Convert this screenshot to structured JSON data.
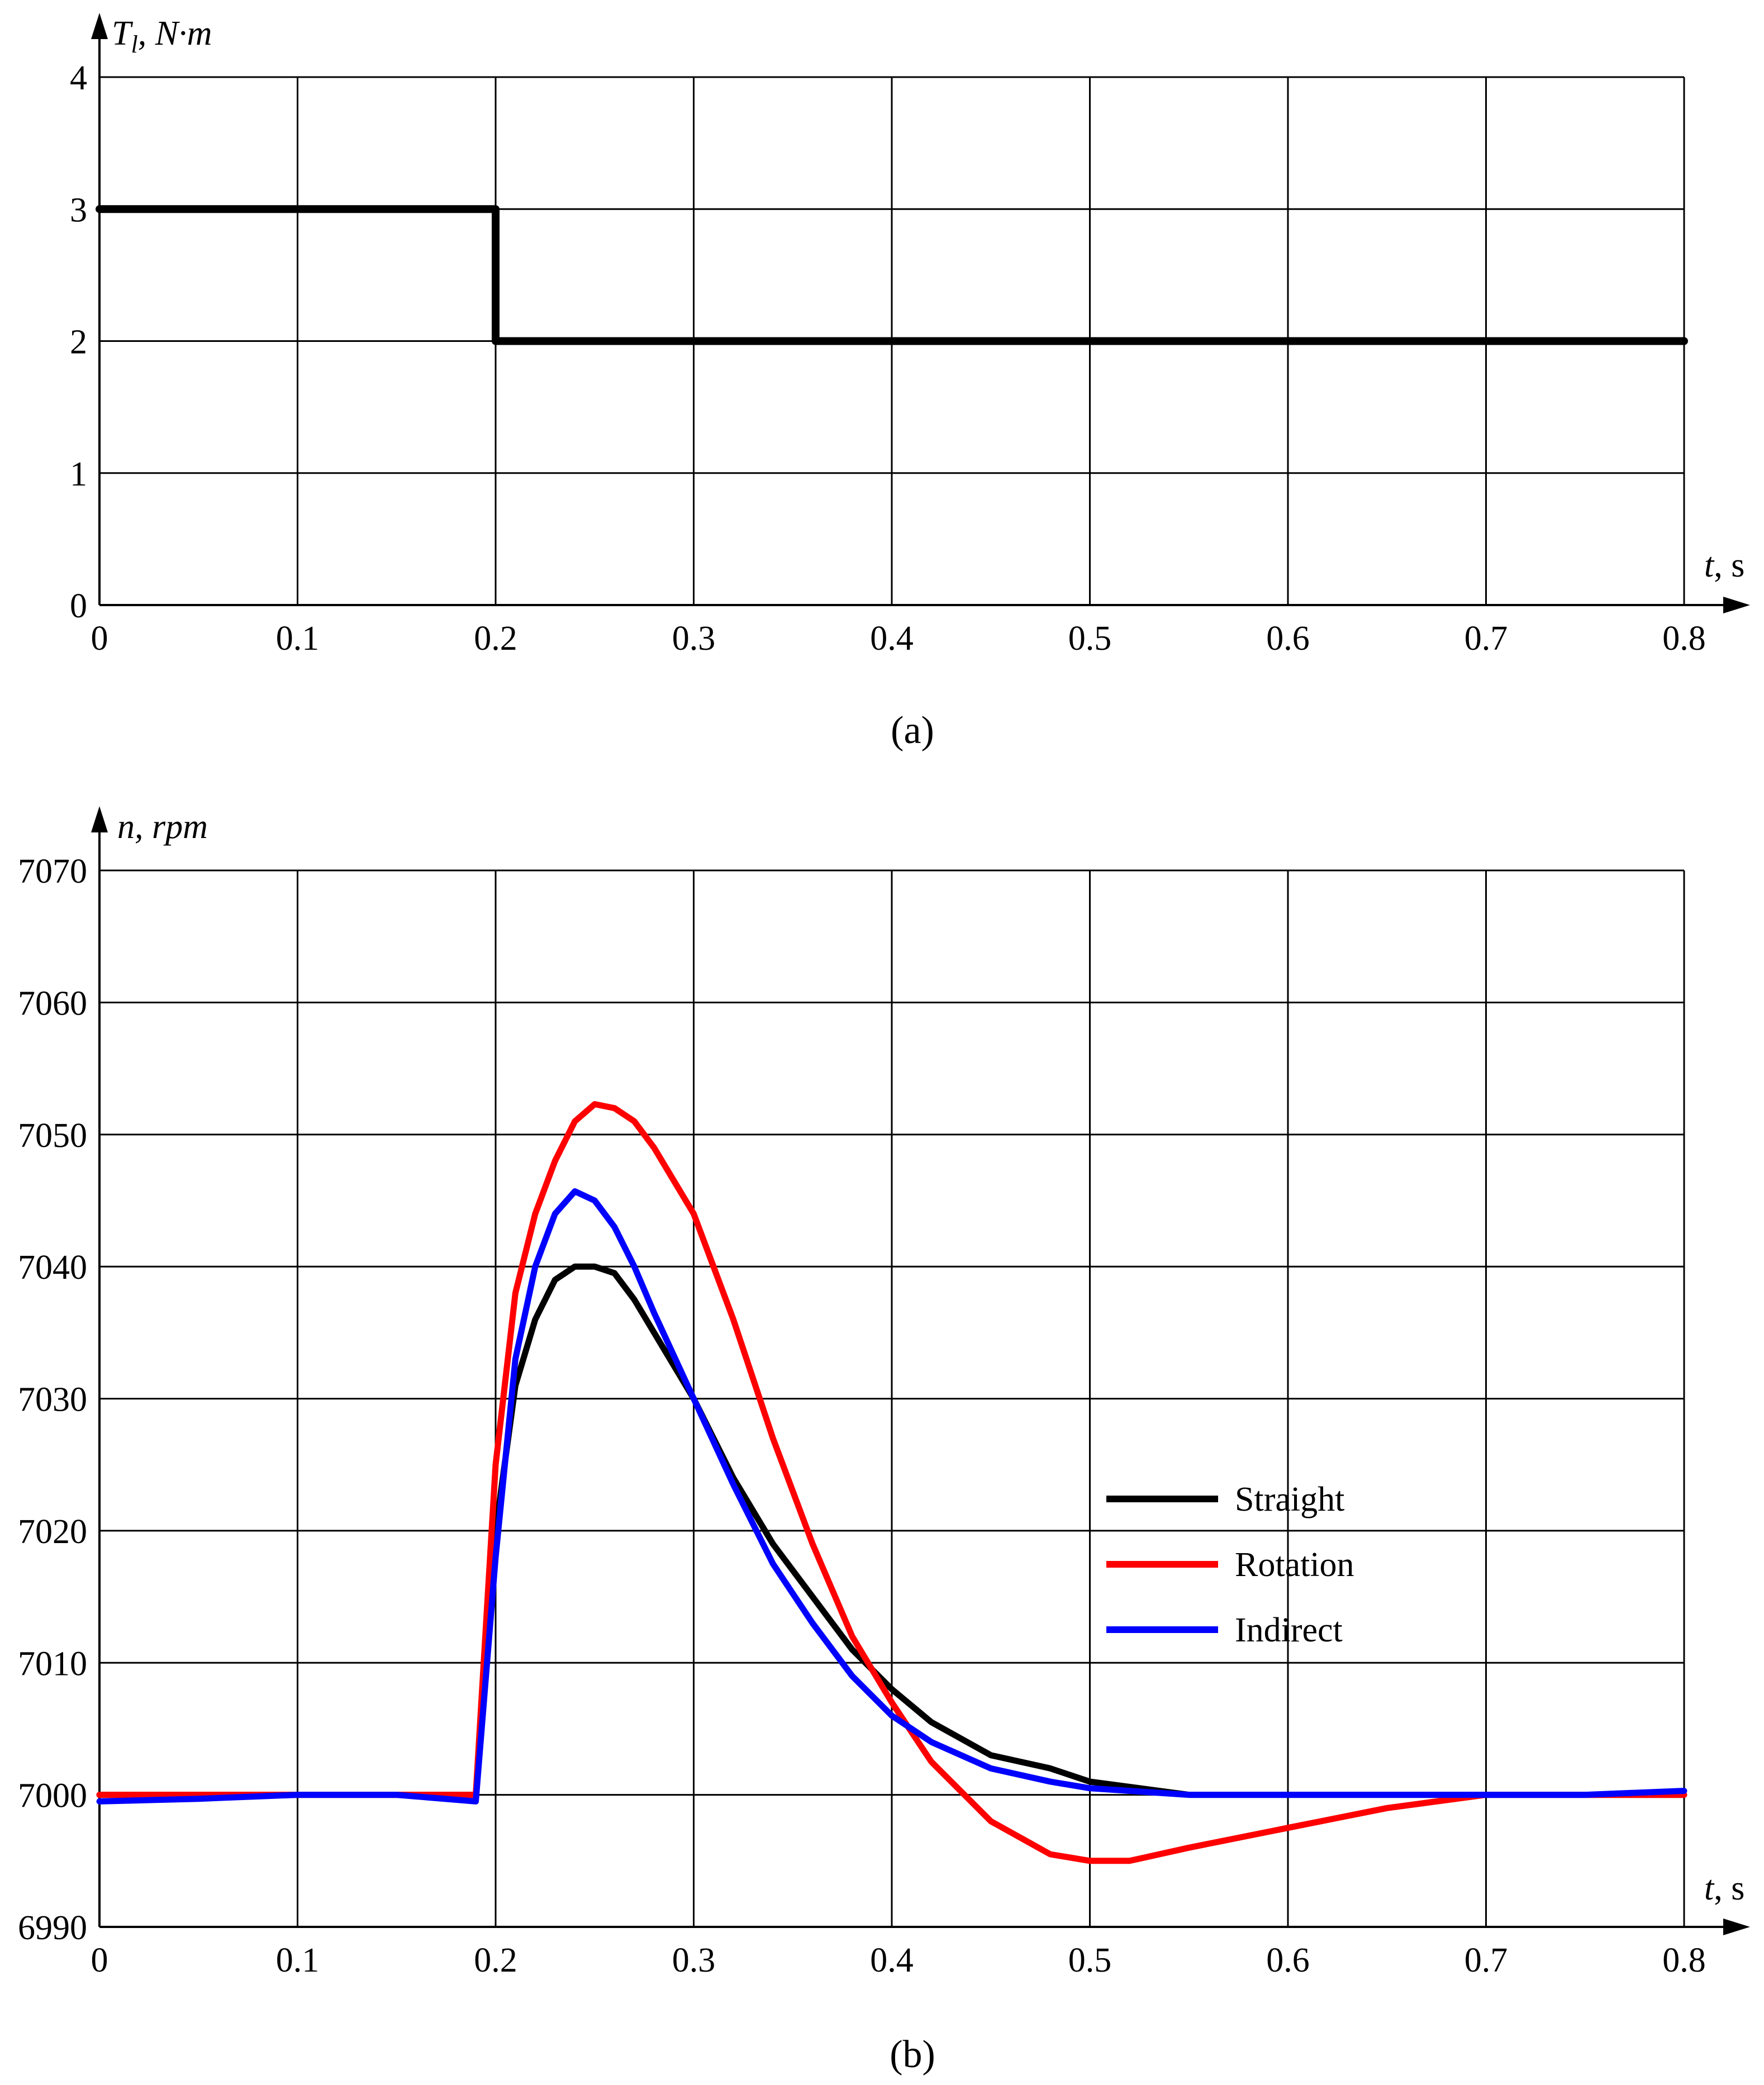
{
  "chart_data": [
    {
      "id": "a",
      "type": "line",
      "caption": "(a)",
      "ylabel": {
        "main": "T",
        "sub": "l",
        "rest": ", N·m"
      },
      "xlabel": {
        "var": "t",
        "rest": ", s"
      },
      "xlim": [
        0,
        0.8
      ],
      "ylim": [
        0,
        4
      ],
      "xticks": [
        0,
        0.1,
        0.2,
        0.3,
        0.4,
        0.5,
        0.6,
        0.7,
        0.8
      ],
      "yticks": [
        0,
        1,
        2,
        3,
        4
      ],
      "xtick_labels": [
        "0",
        "0.1",
        "0.2",
        "0.3",
        "0.4",
        "0.5",
        "0.6",
        "0.7",
        "0.8"
      ],
      "ytick_labels": [
        "0",
        "1",
        "2",
        "3",
        "4"
      ],
      "grid": true,
      "series": [
        {
          "color": "#000000",
          "x": [
            0,
            0.2,
            0.2,
            0.8
          ],
          "y": [
            3,
            3,
            2,
            2
          ]
        }
      ]
    },
    {
      "id": "b",
      "type": "line",
      "caption": "(b)",
      "ylabel": {
        "main": "n, rpm"
      },
      "xlabel": {
        "var": "t",
        "rest": ", s"
      },
      "xlim": [
        0,
        0.8
      ],
      "ylim": [
        6990,
        7070
      ],
      "xticks": [
        0,
        0.1,
        0.2,
        0.3,
        0.4,
        0.5,
        0.6,
        0.7,
        0.8
      ],
      "yticks": [
        6990,
        7000,
        7010,
        7020,
        7030,
        7040,
        7050,
        7060,
        7070
      ],
      "xtick_labels": [
        "0",
        "0.1",
        "0.2",
        "0.3",
        "0.4",
        "0.5",
        "0.6",
        "0.7",
        "0.8"
      ],
      "ytick_labels": [
        "6990",
        "7000",
        "7010",
        "7020",
        "7030",
        "7040",
        "7050",
        "7060",
        "7070"
      ],
      "grid": true,
      "legend_position": "center-right",
      "series": [
        {
          "name": "Straight",
          "color": "#000000",
          "x": [
            0,
            0.05,
            0.1,
            0.15,
            0.19,
            0.2,
            0.21,
            0.22,
            0.23,
            0.24,
            0.25,
            0.26,
            0.27,
            0.28,
            0.3,
            0.32,
            0.34,
            0.36,
            0.38,
            0.4,
            0.42,
            0.45,
            0.48,
            0.5,
            0.55,
            0.6,
            0.65,
            0.7,
            0.75,
            0.8
          ],
          "y": [
            7000,
            7000,
            7000,
            7000,
            7000,
            7020,
            7031,
            7036,
            7039,
            7040,
            7040,
            7039.5,
            7037.5,
            7035,
            7030,
            7024,
            7019,
            7015,
            7011,
            7008,
            7005.5,
            7003,
            7002,
            7001,
            7000,
            7000,
            7000,
            7000,
            7000,
            7000
          ]
        },
        {
          "name": "Rotation",
          "color": "#ff0000",
          "x": [
            0,
            0.05,
            0.1,
            0.15,
            0.19,
            0.2,
            0.21,
            0.22,
            0.23,
            0.24,
            0.25,
            0.26,
            0.27,
            0.28,
            0.3,
            0.32,
            0.34,
            0.36,
            0.38,
            0.4,
            0.42,
            0.45,
            0.48,
            0.5,
            0.52,
            0.55,
            0.6,
            0.65,
            0.7,
            0.75,
            0.8
          ],
          "y": [
            7000,
            7000,
            7000,
            7000,
            7000,
            7025,
            7038,
            7044,
            7048,
            7051,
            7052.3,
            7052,
            7051,
            7049,
            7044,
            7036,
            7027,
            7019,
            7012,
            7007,
            7002.5,
            6998,
            6995.5,
            6995,
            6995,
            6996,
            6997.5,
            6999,
            7000,
            7000,
            7000
          ]
        },
        {
          "name": "Indirect",
          "color": "#0000ff",
          "x": [
            0,
            0.05,
            0.1,
            0.15,
            0.19,
            0.2,
            0.21,
            0.22,
            0.23,
            0.24,
            0.25,
            0.26,
            0.27,
            0.28,
            0.3,
            0.32,
            0.34,
            0.36,
            0.38,
            0.4,
            0.42,
            0.45,
            0.48,
            0.5,
            0.55,
            0.6,
            0.65,
            0.7,
            0.75,
            0.8
          ],
          "y": [
            6999.5,
            6999.7,
            7000,
            7000,
            6999.5,
            7018,
            7033,
            7040,
            7044,
            7045.7,
            7045,
            7043,
            7040,
            7036.5,
            7030,
            7023.5,
            7017.5,
            7013,
            7009,
            7006,
            7004,
            7002,
            7001,
            7000.5,
            7000,
            7000,
            7000,
            7000,
            7000,
            7000.3
          ]
        }
      ]
    }
  ]
}
